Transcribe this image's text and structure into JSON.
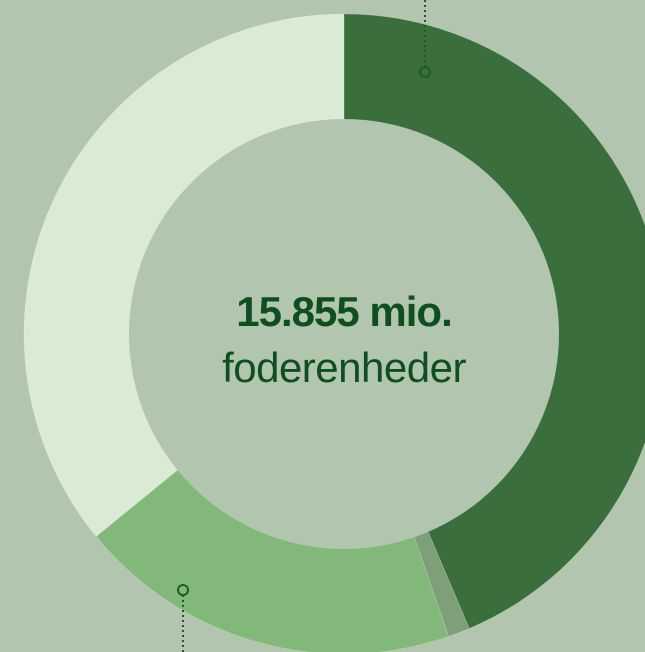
{
  "chart_data": {
    "type": "pie",
    "center_value": "15.855 mio.",
    "center_label": "foderenheder",
    "values": [
      43.6,
      1.1,
      19.4,
      2.5,
      31.9,
      0.8,
      0.7
    ],
    "colors": [
      "#3a6e3c",
      "#7f9f7a",
      "#82b87a",
      "#dbead5",
      "#dbead5",
      "#dbead5",
      "#dbead5"
    ]
  }
}
